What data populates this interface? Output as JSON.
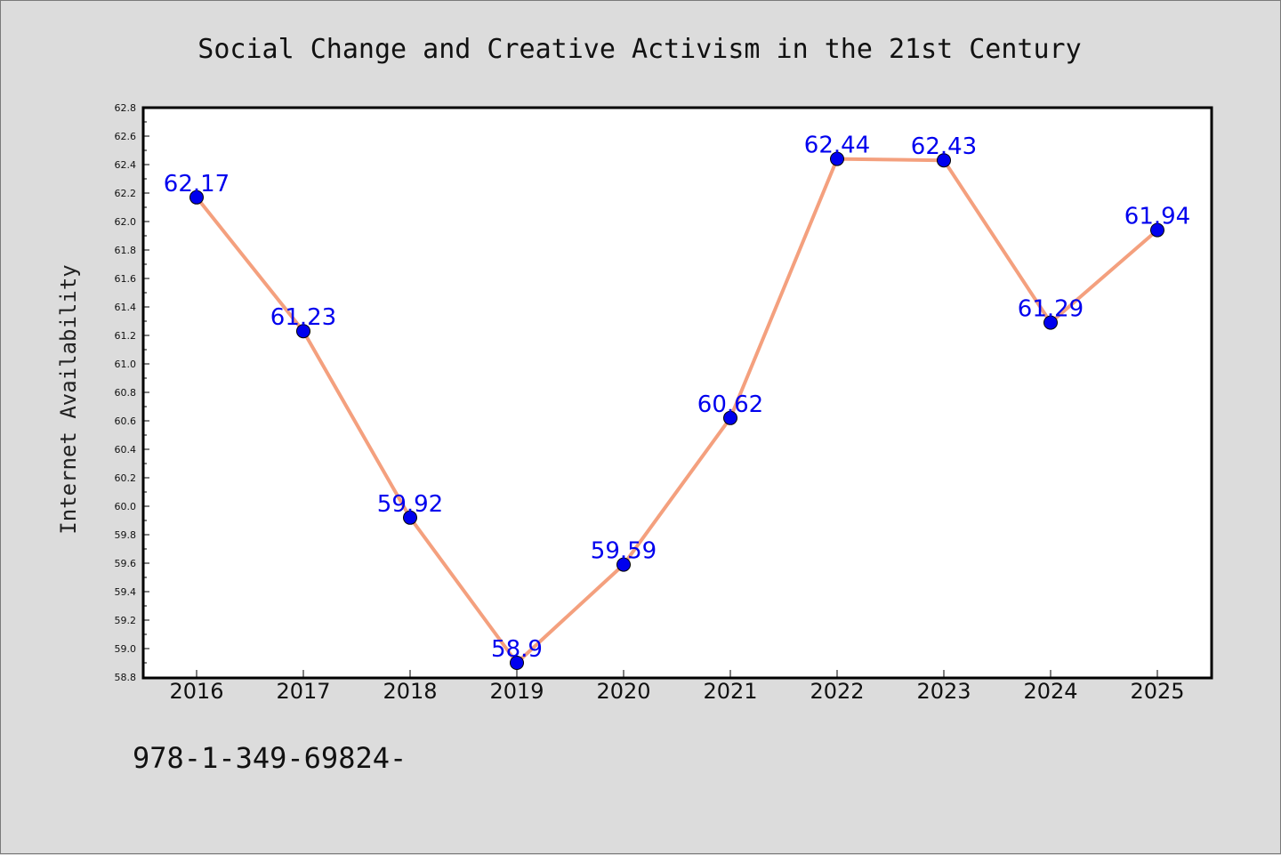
{
  "chart_data": {
    "type": "line",
    "title": "Social Change and Creative Activism in the 21st Century",
    "xlabel": "",
    "ylabel": "Internet Availability",
    "categories": [
      "2016",
      "2017",
      "2018",
      "2019",
      "2020",
      "2021",
      "2022",
      "2023",
      "2024",
      "2025"
    ],
    "series": [
      {
        "values": [
          62.17,
          61.23,
          59.92,
          58.9,
          59.59,
          60.62,
          62.44,
          62.43,
          61.29,
          61.94
        ],
        "data_labels": [
          "62.17",
          "61.23",
          "59.92",
          "58.9",
          "59.59",
          "60.62",
          "62.44",
          "62.43",
          "61.29",
          "61.94"
        ],
        "line_color": "#f4a07e",
        "marker_color": "#0000ee",
        "label_color": "#0000ee"
      }
    ],
    "ylim": [
      58.8,
      62.8
    ],
    "yticks": [
      "58.8",
      "59.0",
      "59.2",
      "59.4",
      "59.6",
      "59.8",
      "60.0",
      "60.2",
      "60.4",
      "60.6",
      "60.8",
      "61.0",
      "61.2",
      "61.4",
      "61.6",
      "61.8",
      "62.0",
      "62.2",
      "62.4",
      "62.6",
      "62.8"
    ],
    "grid": false,
    "legend": "none"
  },
  "footer": {
    "code": "978-1-349-69824-"
  },
  "colors": {
    "background": "#dcdcdc",
    "plot_background": "#ffffff",
    "axis": "#000000"
  }
}
